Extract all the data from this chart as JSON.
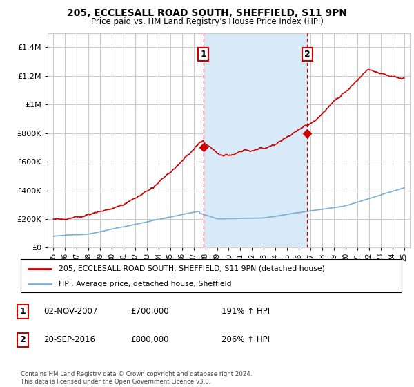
{
  "title": "205, ECCLESALL ROAD SOUTH, SHEFFIELD, S11 9PN",
  "subtitle": "Price paid vs. HM Land Registry's House Price Index (HPI)",
  "property_label": "205, ECCLESALL ROAD SOUTH, SHEFFIELD, S11 9PN (detached house)",
  "hpi_label": "HPI: Average price, detached house, Sheffield",
  "footnote": "Contains HM Land Registry data © Crown copyright and database right 2024.\nThis data is licensed under the Open Government Licence v3.0.",
  "transaction1": {
    "num": "1",
    "date": "02-NOV-2007",
    "price": "£700,000",
    "hpi": "191% ↑ HPI"
  },
  "transaction2": {
    "num": "2",
    "date": "20-SEP-2016",
    "price": "£800,000",
    "hpi": "206% ↑ HPI"
  },
  "vline1_x": 2007.833,
  "vline2_x": 2016.722,
  "point1_x": 2007.833,
  "point1_y": 700000,
  "point2_x": 2016.722,
  "point2_y": 800000,
  "ylim": [
    0,
    1500000
  ],
  "xlim": [
    1994.5,
    2025.5
  ],
  "yticks": [
    0,
    200000,
    400000,
    600000,
    800000,
    1000000,
    1200000,
    1400000
  ],
  "property_color": "#cc0000",
  "hpi_color": "#7bafd4",
  "vline_color": "#cc0000",
  "shaded_color": "#d8eaf7",
  "grid_color": "#cccccc",
  "background_color": "#ffffff"
}
